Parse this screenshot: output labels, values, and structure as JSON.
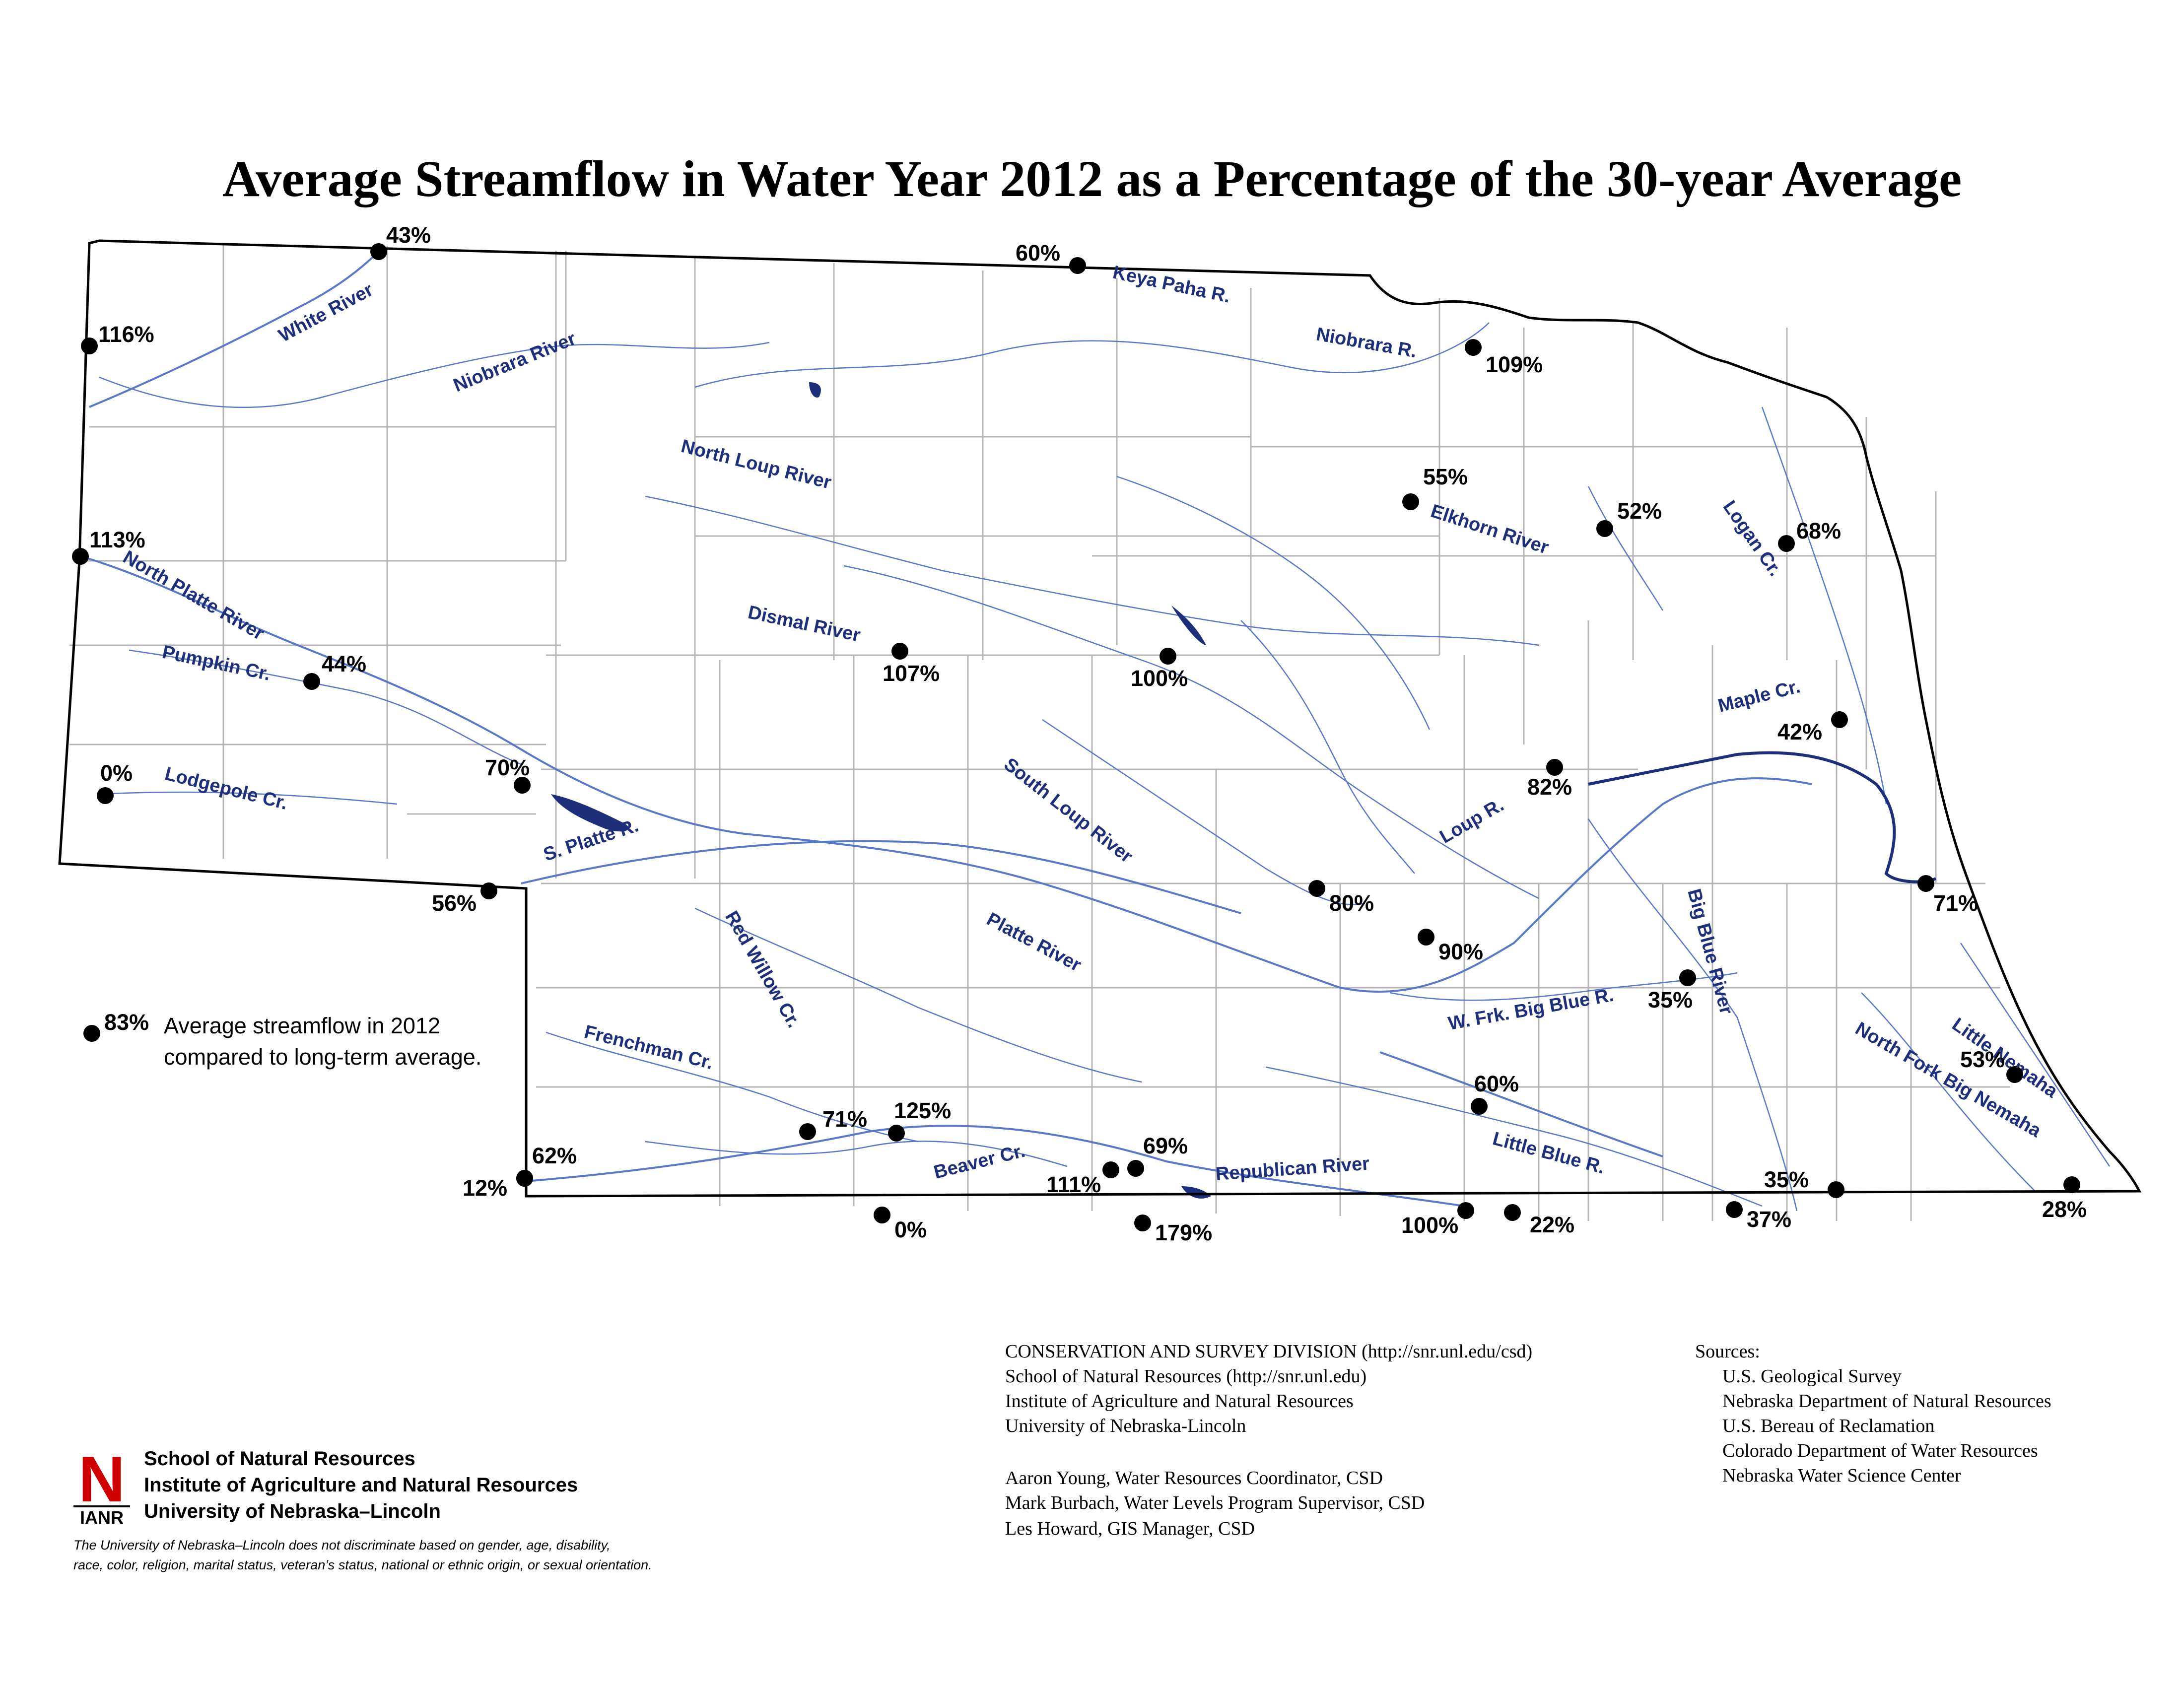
{
  "title": "Average Streamflow in Water Year 2012 as a Percentage of the 30-year Average",
  "colors": {
    "river": "#1d2f7a",
    "stream": "#5a78c8",
    "county_line": "#b4b4b4",
    "gauge": "#000000",
    "logo_red": "#d00000"
  },
  "legend": {
    "sample_value": "83%",
    "line1": "Average streamflow in 2012",
    "line2": "compared to long-term average."
  },
  "gauges": [
    {
      "id": "white-river",
      "label": "43%"
    },
    {
      "id": "niobrara-west",
      "label": "116%"
    },
    {
      "id": "north-platte-west",
      "label": "113%"
    },
    {
      "id": "pumpkin-cr",
      "label": "44%"
    },
    {
      "id": "lodgepole-cr",
      "label": "0%"
    },
    {
      "id": "north-platte-mid",
      "label": "70%"
    },
    {
      "id": "south-platte",
      "label": "56%"
    },
    {
      "id": "keya-paha",
      "label": "60%"
    },
    {
      "id": "niobrara-east",
      "label": "109%"
    },
    {
      "id": "elkhorn-upper",
      "label": "55%"
    },
    {
      "id": "elkhorn-mid",
      "label": "52%"
    },
    {
      "id": "logan-cr",
      "label": "68%"
    },
    {
      "id": "dismal-river",
      "label": "107%"
    },
    {
      "id": "middle-loup",
      "label": "100%"
    },
    {
      "id": "maple-cr",
      "label": "42%"
    },
    {
      "id": "loup-river",
      "label": "82%"
    },
    {
      "id": "south-loup",
      "label": "80%"
    },
    {
      "id": "platte-river",
      "label": "90%"
    },
    {
      "id": "missouri-river",
      "label": "71%"
    },
    {
      "id": "big-blue",
      "label": "35%"
    },
    {
      "id": "little-blue-upper",
      "label": "60%"
    },
    {
      "id": "little-nemaha",
      "label": "53%"
    },
    {
      "id": "republican-west",
      "label": "62%"
    },
    {
      "id": "republican-west-low",
      "label": "12%"
    },
    {
      "id": "frenchman-cr",
      "label": "71%"
    },
    {
      "id": "red-willow-cr",
      "label": "125%"
    },
    {
      "id": "beaver-cr-upper",
      "label": "111%"
    },
    {
      "id": "republican-mid",
      "label": "69%"
    },
    {
      "id": "beaver-cr-lower",
      "label": "0%"
    },
    {
      "id": "republican-lower",
      "label": "179%"
    },
    {
      "id": "little-blue-lower",
      "label": "100%"
    },
    {
      "id": "little-blue-state",
      "label": "22%"
    },
    {
      "id": "big-blue-state",
      "label": "37%"
    },
    {
      "id": "big-blue-east",
      "label": "35%"
    },
    {
      "id": "big-nemaha",
      "label": "28%"
    }
  ],
  "river_labels": [
    "White River",
    "Niobrara River",
    "Keya Paha R.",
    "Niobrara R.",
    "North Loup River",
    "Elkhorn River",
    "Logan Cr.",
    "North Platte River",
    "Pumpkin Cr.",
    "Dismal  River",
    "Lodgepole Cr.",
    "South Loup River",
    "Maple Cr.",
    "Loup R.",
    "S. Platte R.",
    "Red Willow Cr.",
    "Platte River",
    "Big Blue River",
    "W. Frk. Big Blue R.",
    "Frenchman Cr.",
    "Little Blue R.",
    "Beaver Cr.",
    "Republican River",
    "Little Nemaha",
    "North Fork Big Nemaha"
  ],
  "credits": {
    "division": "CONSERVATION AND SURVEY DIVISION (http://snr.unl.edu/csd)",
    "school": "School of Natural Resources (http://snr.unl.edu)",
    "institute": "Institute of Agriculture and Natural Resources",
    "university": "University of Nebraska-Lincoln",
    "person1": "Aaron Young, Water Resources Coordinator, CSD",
    "person2": "Mark Burbach, Water Levels Program Supervisor, CSD",
    "person3": "Les Howard, GIS Manager, CSD"
  },
  "sources": {
    "heading": "Sources:",
    "items": [
      "U.S. Geological Survey",
      "Nebraska Department of Natural Resources",
      "U.S. Bereau of Reclamation",
      "Colorado Department of Water Resources",
      "Nebraska Water Science Center"
    ]
  },
  "institution": {
    "logo_letter": "N",
    "logo_caption": "IANR",
    "line1": "School of Natural Resources",
    "line2": "Institute of Agriculture and Natural Resources",
    "line3": "University of Nebraska–Lincoln"
  },
  "disclaimer": {
    "line1": "The University of Nebraska–Lincoln does not discriminate based on gender, age, disability,",
    "line2": "race, color, religion, marital status, veteran’s status, national or ethnic origin, or sexual orientation."
  }
}
